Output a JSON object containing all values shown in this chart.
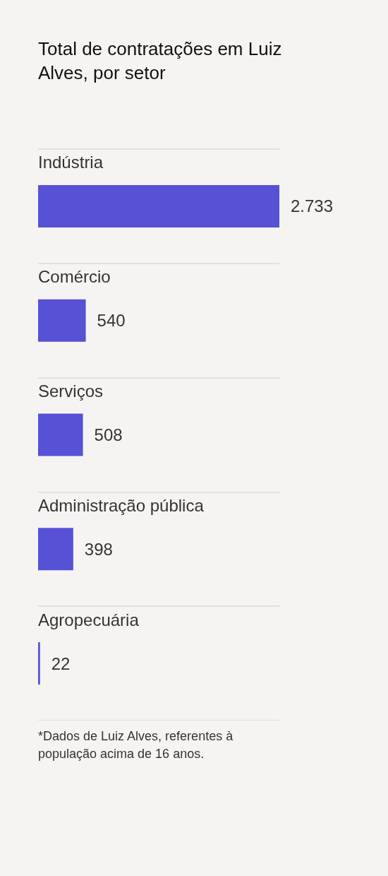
{
  "chart_data": {
    "type": "bar",
    "orientation": "horizontal",
    "title": "Total de contratações em Luiz Alves, por setor",
    "categories": [
      "Indústria",
      "Comércio",
      "Serviços",
      "Administração pública",
      "Agropecuária"
    ],
    "values": [
      2733,
      540,
      508,
      398,
      22
    ],
    "value_labels": [
      "2.733",
      "540",
      "508",
      "398",
      "22"
    ],
    "color": "#5651d5",
    "annotations": [
      "*Dados de Luiz Alves, referentes à população acima de 16 anos."
    ]
  }
}
